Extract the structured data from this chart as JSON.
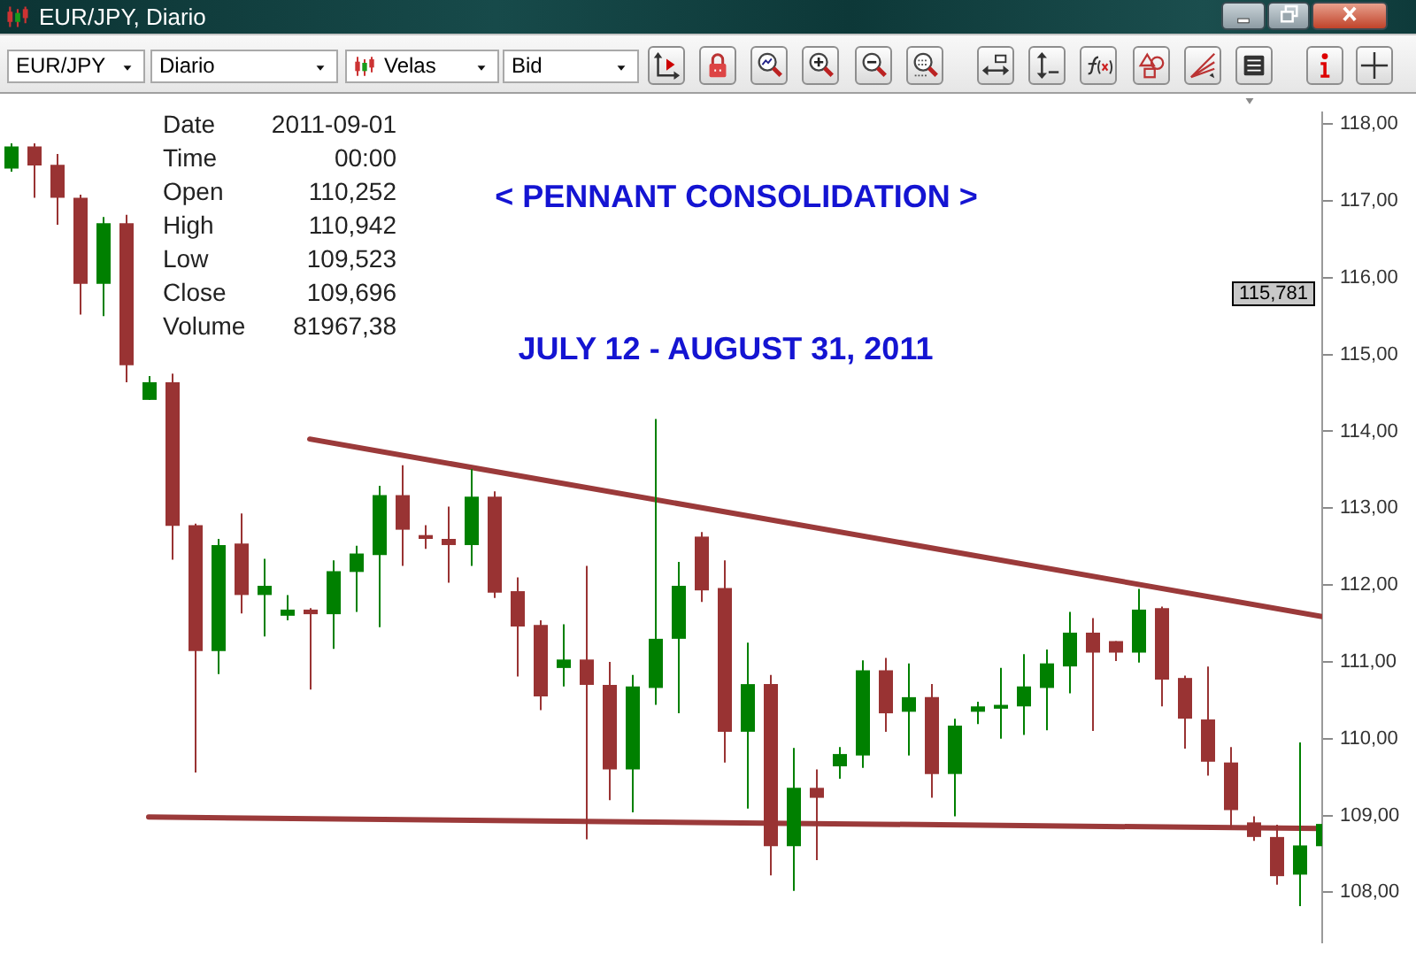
{
  "chart_data": {
    "type": "candlestick",
    "title": "< PENNANT CONSOLIDATION >",
    "subtitle": "JULY 12 - AUGUST 31, 2011",
    "categories": [
      null,
      null,
      null,
      null,
      null,
      null,
      null,
      null,
      null,
      null,
      null,
      null,
      null,
      null,
      null,
      null,
      null,
      null,
      null,
      null,
      null,
      null,
      null,
      null,
      null,
      null,
      null,
      null,
      null,
      null,
      null,
      null,
      null,
      null,
      null,
      null,
      null,
      null,
      null,
      null,
      null,
      null,
      null,
      null,
      null,
      null,
      null,
      null,
      null,
      null,
      null,
      null,
      null,
      null,
      null,
      null,
      null,
      null
    ],
    "ohlc": [
      [
        117.42,
        117.75,
        117.38,
        117.71
      ],
      [
        117.71,
        117.75,
        117.04,
        117.46
      ],
      [
        117.47,
        117.61,
        116.69,
        117.04
      ],
      [
        117.04,
        117.08,
        115.52,
        115.92
      ],
      [
        115.92,
        116.79,
        115.5,
        116.71
      ],
      [
        116.71,
        116.82,
        114.64,
        114.86
      ],
      [
        114.41,
        114.72,
        114.41,
        114.64
      ],
      [
        114.64,
        114.75,
        112.33,
        112.77
      ],
      [
        112.78,
        112.8,
        109.56,
        111.14
      ],
      [
        111.14,
        112.6,
        110.84,
        112.52
      ],
      [
        112.54,
        112.93,
        111.63,
        111.87
      ],
      [
        111.87,
        112.34,
        111.33,
        111.99
      ],
      [
        111.6,
        111.87,
        111.54,
        111.68
      ],
      [
        111.68,
        111.7,
        110.64,
        111.62
      ],
      [
        111.62,
        112.32,
        111.17,
        112.18
      ],
      [
        112.17,
        112.51,
        111.65,
        112.41
      ],
      [
        112.39,
        113.29,
        111.45,
        113.17
      ],
      [
        113.17,
        113.56,
        112.25,
        112.72
      ],
      [
        112.65,
        112.78,
        112.47,
        112.6
      ],
      [
        112.6,
        113.02,
        112.03,
        112.52
      ],
      [
        112.52,
        113.51,
        112.25,
        113.15
      ],
      [
        113.15,
        113.22,
        111.83,
        111.9
      ],
      [
        111.92,
        112.1,
        110.81,
        111.46
      ],
      [
        111.48,
        111.54,
        110.37,
        110.55
      ],
      [
        110.92,
        111.49,
        110.68,
        111.03
      ],
      [
        111.03,
        112.25,
        108.69,
        110.7
      ],
      [
        110.7,
        111.0,
        109.2,
        109.6
      ],
      [
        109.6,
        110.83,
        109.04,
        110.68
      ],
      [
        110.66,
        114.16,
        110.44,
        111.3
      ],
      [
        111.3,
        112.3,
        110.33,
        111.99
      ],
      [
        112.63,
        112.69,
        111.78,
        111.93
      ],
      [
        111.96,
        112.32,
        109.69,
        110.09
      ],
      [
        110.09,
        111.25,
        109.09,
        110.71
      ],
      [
        110.71,
        110.83,
        108.22,
        108.6
      ],
      [
        108.6,
        109.88,
        108.02,
        109.36
      ],
      [
        109.36,
        109.6,
        108.42,
        109.23
      ],
      [
        109.64,
        109.89,
        109.48,
        109.8
      ],
      [
        109.78,
        111.02,
        109.62,
        110.89
      ],
      [
        110.89,
        111.05,
        110.09,
        110.33
      ],
      [
        110.35,
        110.98,
        109.78,
        110.54
      ],
      [
        110.54,
        110.71,
        109.23,
        109.54
      ],
      [
        109.54,
        110.26,
        108.99,
        110.17
      ],
      [
        110.35,
        110.48,
        110.19,
        110.42
      ],
      [
        110.39,
        110.92,
        110.0,
        110.44
      ],
      [
        110.42,
        111.1,
        110.05,
        110.68
      ],
      [
        110.66,
        111.16,
        110.11,
        110.98
      ],
      [
        110.94,
        111.65,
        110.59,
        111.38
      ],
      [
        111.38,
        111.57,
        110.1,
        111.12
      ],
      [
        111.27,
        111.27,
        111.01,
        111.12
      ],
      [
        111.12,
        111.95,
        110.99,
        111.68
      ],
      [
        111.7,
        111.72,
        110.42,
        110.77
      ],
      [
        110.79,
        110.82,
        109.87,
        110.26
      ],
      [
        110.25,
        110.94,
        109.52,
        109.7
      ],
      [
        109.69,
        109.89,
        108.83,
        109.07
      ],
      [
        108.91,
        108.99,
        108.67,
        108.72
      ],
      [
        108.72,
        108.88,
        108.1,
        108.21
      ],
      [
        108.23,
        109.95,
        107.82,
        108.61
      ],
      [
        108.6,
        108.92,
        108.58,
        108.89
      ]
    ],
    "colors": [
      "#008000",
      "#993333",
      "#993333",
      "#993333",
      "#008000",
      "#993333",
      "#008000",
      "#993333",
      "#993333",
      "#008000",
      "#993333",
      "#008000",
      "#008000",
      "#993333",
      "#008000",
      "#008000",
      "#008000",
      "#993333",
      "#993333",
      "#993333",
      "#008000",
      "#993333",
      "#993333",
      "#993333",
      "#008000",
      "#993333",
      "#993333",
      "#008000",
      "#008000",
      "#008000",
      "#993333",
      "#993333",
      "#008000",
      "#993333",
      "#008000",
      "#993333",
      "#008000",
      "#008000",
      "#993333",
      "#008000",
      "#993333",
      "#008000",
      "#008000",
      "#008000",
      "#008000",
      "#008000",
      "#008000",
      "#993333",
      "#993333",
      "#008000",
      "#993333",
      "#993333",
      "#993333",
      "#993333",
      "#993333",
      "#993333",
      "#008000",
      "#008000"
    ],
    "series": [
      {
        "type": "line",
        "values": [
          null,
          null,
          null,
          null,
          null,
          null,
          null,
          null,
          null,
          null,
          null,
          null,
          null,
          113.9,
          null,
          null,
          null,
          null,
          null,
          null,
          null,
          null,
          null,
          null,
          null,
          null,
          null,
          null,
          null,
          null,
          null,
          null,
          null,
          null,
          null,
          null,
          null,
          null,
          null,
          null,
          null,
          null,
          null,
          null,
          null,
          null,
          null,
          null,
          null,
          null,
          null,
          null,
          null,
          null,
          null,
          null,
          null,
          111.59
        ],
        "color": "#9b3a3a"
      },
      {
        "type": "line",
        "values": [
          null,
          null,
          null,
          null,
          null,
          null,
          108.98,
          null,
          null,
          null,
          null,
          null,
          null,
          null,
          null,
          null,
          null,
          null,
          null,
          null,
          null,
          null,
          null,
          null,
          null,
          null,
          null,
          null,
          null,
          null,
          null,
          null,
          null,
          null,
          null,
          null,
          null,
          null,
          null,
          null,
          null,
          null,
          null,
          null,
          null,
          null,
          null,
          null,
          null,
          null,
          null,
          null,
          null,
          null,
          null,
          null,
          null,
          108.83
        ],
        "color": "#9b3a3a"
      }
    ],
    "marker": "none",
    "line_style": "solid",
    "ylim": [
      107.35,
      118.15
    ],
    "yticks": [
      {
        "value": 108,
        "label": "108,00"
      },
      {
        "value": 109,
        "label": "109,00"
      },
      {
        "value": 110,
        "label": "110,00"
      },
      {
        "value": 111,
        "label": "111,00"
      },
      {
        "value": 112,
        "label": "112,00"
      },
      {
        "value": 113,
        "label": "113,00"
      },
      {
        "value": 114,
        "label": "114,00"
      },
      {
        "value": 115,
        "label": "115,00"
      },
      {
        "value": 116,
        "label": "116,00"
      },
      {
        "value": 117,
        "label": "117,00"
      },
      {
        "value": 118,
        "label": "118,00"
      }
    ],
    "tick_labels": "y",
    "grid": false,
    "legend": false,
    "annotations": [
      "EUR/JPY, Diario",
      "EUR/JPY",
      "Diario",
      "Velas",
      "Bid",
      "Date",
      "2011-09-01",
      "Time",
      "00:00",
      "Open",
      "110,252",
      "High",
      "110,942",
      "Low",
      "109,523",
      "Close",
      "109,696",
      "Volume",
      "81967,38",
      "115,781"
    ]
  }
}
